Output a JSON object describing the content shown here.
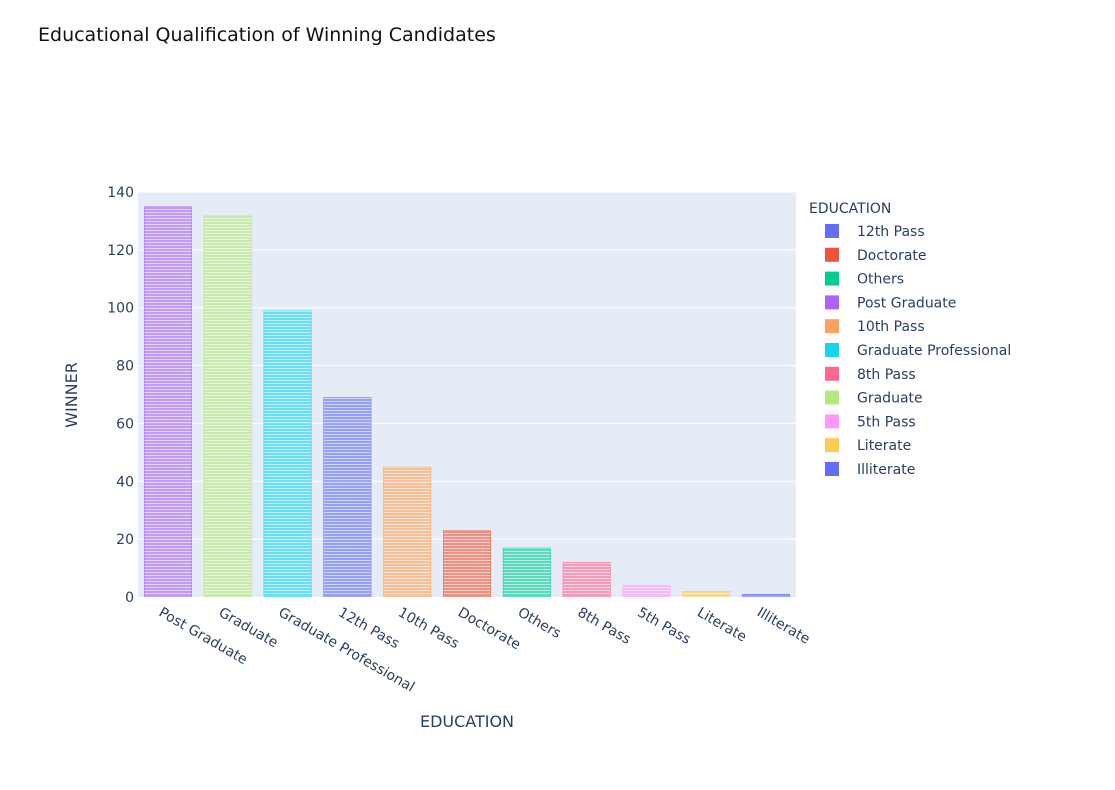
{
  "chart_data": {
    "type": "bar",
    "title": "Educational Qualification of Winning Candidates",
    "xlabel": "EDUCATION",
    "ylabel": "WINNER",
    "ylim": [
      0,
      140
    ],
    "yticks": [
      0,
      20,
      40,
      60,
      80,
      100,
      120,
      140
    ],
    "grid": true,
    "legend_title": "EDUCATION",
    "legend_position": "right",
    "categories": [
      "Post Graduate",
      "Graduate",
      "Graduate Professional",
      "12th Pass",
      "10th Pass",
      "Doctorate",
      "Others",
      "8th Pass",
      "5th Pass",
      "Literate",
      "Illiterate"
    ],
    "values": [
      135,
      132,
      99,
      69,
      45,
      23,
      17,
      12,
      4,
      2,
      1
    ],
    "colors": {
      "12th Pass": "#636efa",
      "Doctorate": "#EF553B",
      "Others": "#00cc96",
      "Post Graduate": "#ab63fa",
      "10th Pass": "#FFA15A",
      "Graduate Professional": "#19d3f3",
      "8th Pass": "#FF6692",
      "Graduate": "#B6E880",
      "5th Pass": "#FF97FF",
      "Literate": "#FECB52",
      "Illiterate": "#636efa"
    },
    "legend_order": [
      "12th Pass",
      "Doctorate",
      "Others",
      "Post Graduate",
      "10th Pass",
      "Graduate Professional",
      "8th Pass",
      "Graduate",
      "5th Pass",
      "Literate",
      "Illiterate"
    ]
  }
}
